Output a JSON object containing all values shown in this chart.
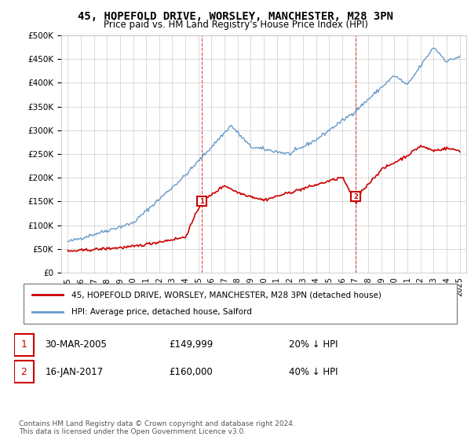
{
  "title": "45, HOPEFOLD DRIVE, WORSLEY, MANCHESTER, M28 3PN",
  "subtitle": "Price paid vs. HM Land Registry's House Price Index (HPI)",
  "legend_line1": "45, HOPEFOLD DRIVE, WORSLEY, MANCHESTER, M28 3PN (detached house)",
  "legend_line2": "HPI: Average price, detached house, Salford",
  "sale1_label": "1",
  "sale1_date": "30-MAR-2005",
  "sale1_price": "£149,999",
  "sale1_hpi": "20% ↓ HPI",
  "sale2_label": "2",
  "sale2_date": "16-JAN-2017",
  "sale2_price": "£160,000",
  "sale2_hpi": "40% ↓ HPI",
  "footnote": "Contains HM Land Registry data © Crown copyright and database right 2024.\nThis data is licensed under the Open Government Licence v3.0.",
  "sale1_x": 2005.25,
  "sale1_y": 149999,
  "sale2_x": 2017.04,
  "sale2_y": 160000,
  "ylim": [
    0,
    500000
  ],
  "xlim_start": 1994.5,
  "xlim_end": 2025.5,
  "color_red": "#cc0000",
  "color_blue": "#6699cc",
  "color_grid": "#cccccc",
  "color_bg": "#ffffff",
  "xticks": [
    1995,
    1996,
    1997,
    1998,
    1999,
    2000,
    2001,
    2002,
    2003,
    2004,
    2005,
    2006,
    2007,
    2008,
    2009,
    2010,
    2011,
    2012,
    2013,
    2014,
    2015,
    2016,
    2017,
    2018,
    2019,
    2020,
    2021,
    2022,
    2023,
    2024,
    2025
  ],
  "yticks": [
    0,
    50000,
    100000,
    150000,
    200000,
    250000,
    300000,
    350000,
    400000,
    450000,
    500000
  ]
}
